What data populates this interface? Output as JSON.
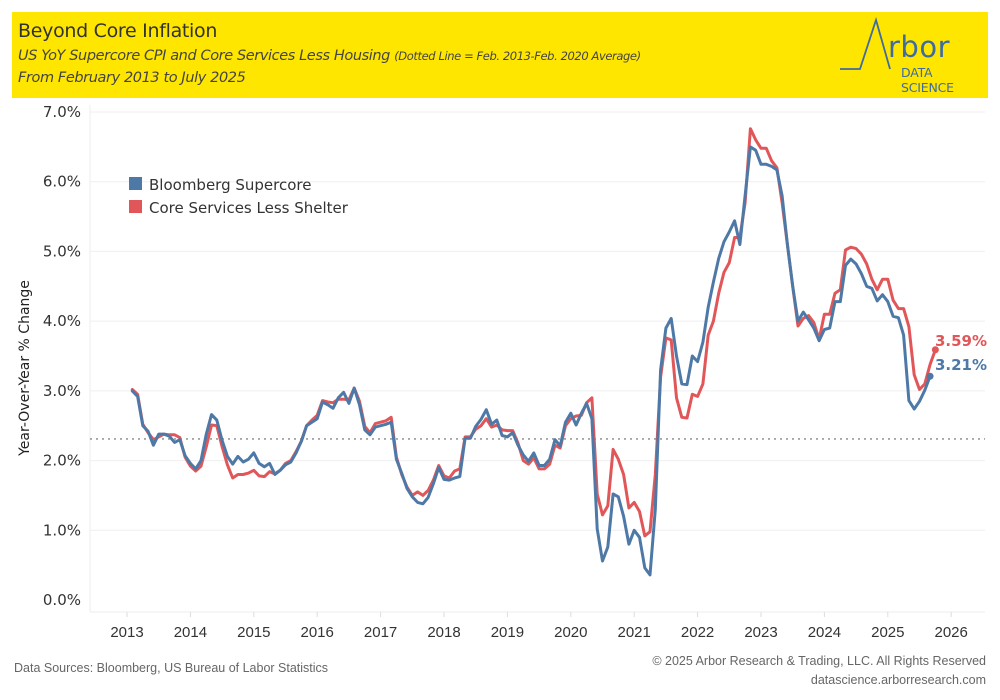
{
  "header": {
    "title": "Beyond Core Inflation",
    "subtitle_main": "US YoY Supercore CPI and Core Services Less Housing",
    "subtitle_note": "(Dotted Line = Feb. 2013-Feb. 2020 Average)",
    "subtitle_range": "From February 2013 to July 2025",
    "background_color": "#FFE600"
  },
  "logo": {
    "name": "Arbor",
    "tagline": "DATA SCIENCE",
    "color": "#3F6BA0"
  },
  "footer": {
    "sources": "Data Sources: Bloomberg, US Bureau of Labor Statistics",
    "copyright": "© 2025 Arbor Research & Trading, LLC. All Rights Reserved",
    "website": "datascience.arborresearch.com"
  },
  "chart_data": {
    "type": "line",
    "title": "Beyond Core Inflation",
    "xlabel": "",
    "ylabel": "Year-Over-Year % Change",
    "x_start": "2013-02",
    "x_end": "2025-07",
    "x_frequency": "monthly",
    "xlim": [
      2012.75,
      2026.3
    ],
    "ylim": [
      0,
      7
    ],
    "x_ticks": [
      "2013",
      "2014",
      "2015",
      "2016",
      "2017",
      "2018",
      "2019",
      "2020",
      "2021",
      "2022",
      "2023",
      "2024",
      "2025",
      "2026"
    ],
    "y_ticks": [
      "0.0%",
      "1.0%",
      "2.0%",
      "3.0%",
      "4.0%",
      "5.0%",
      "6.0%",
      "7.0%"
    ],
    "y_tick_values": [
      0,
      1,
      2,
      3,
      4,
      5,
      6,
      7
    ],
    "grid": true,
    "legend_position": "top-left",
    "reference_line": {
      "label": "Feb. 2013-Feb. 2020 Average",
      "value": 2.31,
      "style": "dotted",
      "color": "#999999"
    },
    "series": [
      {
        "name": "Bloomberg Supercore",
        "color": "#4E79A7",
        "end_label": "3.21%",
        "values": [
          3.0,
          2.92,
          2.5,
          2.42,
          2.22,
          2.38,
          2.38,
          2.35,
          2.26,
          2.3,
          2.07,
          1.96,
          1.88,
          2.0,
          2.38,
          2.66,
          2.58,
          2.29,
          2.06,
          1.95,
          2.06,
          1.98,
          2.02,
          2.11,
          1.96,
          1.91,
          1.96,
          1.8,
          1.86,
          1.94,
          1.98,
          2.11,
          2.28,
          2.5,
          2.55,
          2.6,
          2.84,
          2.8,
          2.75,
          2.9,
          2.98,
          2.82,
          3.04,
          2.8,
          2.44,
          2.37,
          2.48,
          2.5,
          2.52,
          2.55,
          2.02,
          1.82,
          1.6,
          1.48,
          1.4,
          1.38,
          1.47,
          1.67,
          1.9,
          1.73,
          1.72,
          1.75,
          1.77,
          2.32,
          2.32,
          2.49,
          2.59,
          2.73,
          2.52,
          2.58,
          2.36,
          2.34,
          2.4,
          2.22,
          2.08,
          1.99,
          2.11,
          1.93,
          1.93,
          2.02,
          2.3,
          2.21,
          2.55,
          2.68,
          2.51,
          2.68,
          2.82,
          2.6,
          1.02,
          0.56,
          0.76,
          1.52,
          1.48,
          1.2,
          0.8,
          1.0,
          0.9,
          0.46,
          0.36,
          1.3,
          3.3,
          3.9,
          4.04,
          3.5,
          3.1,
          3.09,
          3.5,
          3.42,
          3.7,
          4.2,
          4.56,
          4.9,
          5.14,
          5.28,
          5.44,
          5.1,
          5.8,
          6.5,
          6.45,
          6.25,
          6.25,
          6.22,
          6.17,
          5.8,
          5.1,
          4.5,
          4.0,
          4.13,
          4.02,
          3.9,
          3.72,
          3.88,
          3.9,
          4.28,
          4.28,
          4.8,
          4.89,
          4.82,
          4.68,
          4.5,
          4.47,
          4.29,
          4.38,
          4.28,
          4.07,
          4.05,
          3.8,
          2.86,
          2.74,
          2.85,
          3.01,
          3.21
        ]
      },
      {
        "name": "Core Services Less Shelter",
        "color": "#E15759",
        "end_label": "3.59%",
        "values": [
          3.02,
          2.95,
          2.52,
          2.4,
          2.3,
          2.34,
          2.38,
          2.37,
          2.37,
          2.33,
          2.05,
          1.92,
          1.85,
          1.92,
          2.2,
          2.51,
          2.5,
          2.2,
          1.94,
          1.75,
          1.8,
          1.8,
          1.82,
          1.86,
          1.78,
          1.77,
          1.84,
          1.81,
          1.86,
          1.96,
          2.0,
          2.13,
          2.28,
          2.5,
          2.58,
          2.65,
          2.86,
          2.84,
          2.83,
          2.88,
          2.88,
          2.87,
          3.04,
          2.85,
          2.49,
          2.4,
          2.53,
          2.55,
          2.57,
          2.62,
          2.05,
          1.8,
          1.62,
          1.5,
          1.55,
          1.5,
          1.57,
          1.72,
          1.93,
          1.78,
          1.75,
          1.85,
          1.88,
          2.34,
          2.34,
          2.45,
          2.5,
          2.6,
          2.48,
          2.51,
          2.44,
          2.43,
          2.43,
          2.25,
          2.0,
          1.95,
          2.04,
          1.88,
          1.88,
          1.95,
          2.22,
          2.18,
          2.5,
          2.6,
          2.64,
          2.65,
          2.83,
          2.9,
          1.52,
          1.22,
          1.35,
          2.16,
          2.02,
          1.8,
          1.32,
          1.4,
          1.27,
          0.92,
          0.98,
          1.8,
          3.2,
          3.76,
          3.73,
          2.9,
          2.62,
          2.61,
          2.95,
          2.92,
          3.1,
          3.8,
          4.0,
          4.4,
          4.7,
          4.84,
          5.2,
          5.2,
          5.7,
          6.76,
          6.6,
          6.48,
          6.48,
          6.3,
          6.2,
          5.7,
          5.1,
          4.5,
          3.93,
          4.04,
          4.08,
          3.98,
          3.74,
          4.1,
          4.1,
          4.4,
          4.45,
          5.02,
          5.06,
          5.04,
          4.96,
          4.82,
          4.6,
          4.45,
          4.6,
          4.6,
          4.3,
          4.18,
          4.18,
          3.92,
          3.23,
          3.02,
          3.1,
          3.38,
          3.59
        ]
      }
    ]
  }
}
